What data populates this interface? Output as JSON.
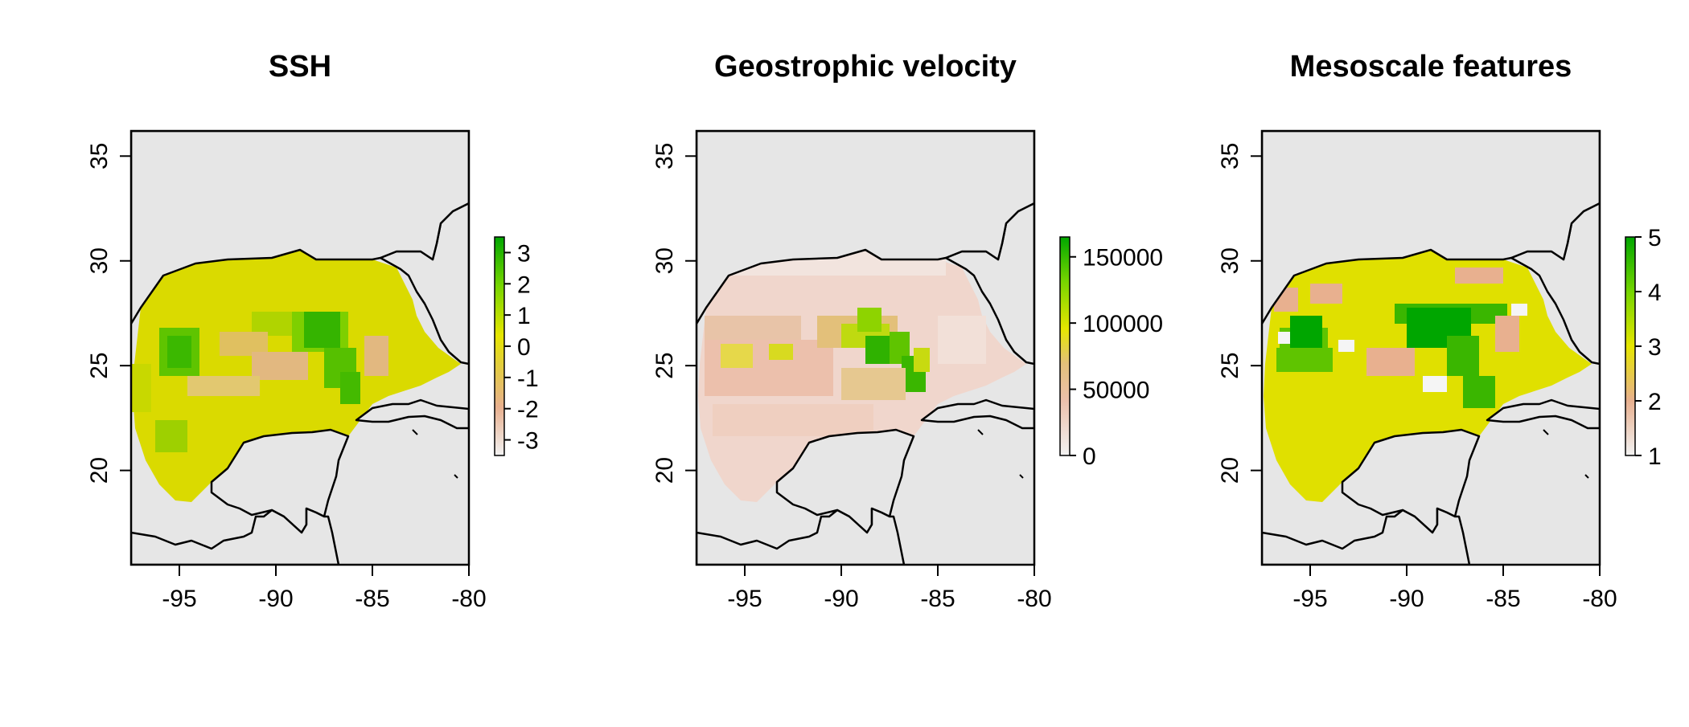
{
  "panels": [
    {
      "id": "ssh",
      "title": "SSH",
      "x_ticks": [
        "-95",
        "-90",
        "-85",
        "-80"
      ],
      "y_ticks": [
        "35",
        "30",
        "25",
        "20"
      ],
      "legend": {
        "min": -3.5,
        "max": 3.5,
        "labels": [
          "3",
          "2",
          "1",
          "0",
          "-1",
          "-2",
          "-3"
        ],
        "values": [
          3,
          2,
          1,
          0,
          -1,
          -2,
          -3
        ],
        "colors": [
          "#f2f2f2",
          "#e8b08f",
          "#e3cf3a",
          "#e6e600",
          "#75d500",
          "#00a600"
        ]
      }
    },
    {
      "id": "geostrophic",
      "title": "Geostrophic velocity",
      "x_ticks": [
        "-95",
        "-90",
        "-85",
        "-80"
      ],
      "y_ticks": [
        "35",
        "30",
        "25",
        "20"
      ],
      "legend": {
        "min": 0,
        "max": 165000,
        "labels": [
          "150000",
          "100000",
          "50000",
          "0"
        ],
        "values": [
          150000,
          100000,
          50000,
          0
        ],
        "colors": [
          "#f2f2f2",
          "#ecc0ac",
          "#e3c07a",
          "#e6e600",
          "#75d500",
          "#00a600"
        ]
      }
    },
    {
      "id": "mesoscale",
      "title": "Mesoscale features",
      "x_ticks": [
        "-95",
        "-90",
        "-85",
        "-80"
      ],
      "y_ticks": [
        "35",
        "30",
        "25",
        "20"
      ],
      "legend": {
        "min": 1,
        "max": 5,
        "labels": [
          "5",
          "4",
          "3",
          "2",
          "1"
        ],
        "values": [
          5,
          4,
          3,
          2,
          1
        ],
        "colors": [
          "#f2f2f2",
          "#e8b08f",
          "#e6e600",
          "#75d500",
          "#00a600"
        ]
      }
    }
  ],
  "colors": {
    "land": "#e6e6e6",
    "background": "#ffffff"
  }
}
